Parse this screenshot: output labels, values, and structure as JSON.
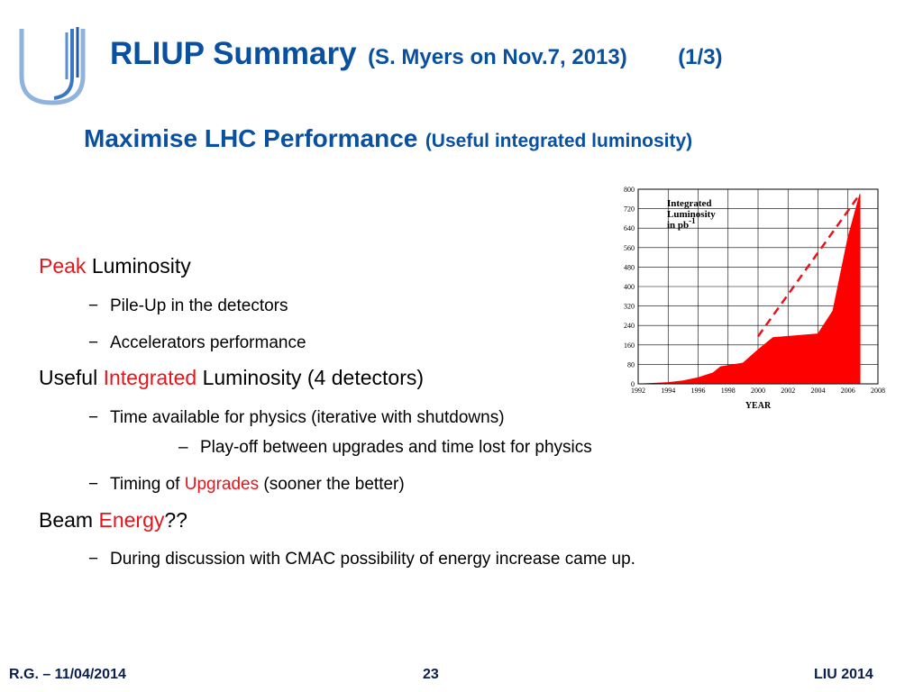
{
  "header": {
    "title": "RLIUP Summary",
    "title_sub": "(S. Myers on Nov.7, 2013)",
    "page_indicator": "(1/3)"
  },
  "subtitle": {
    "main": "Maximise LHC Performance",
    "sub": "(Useful integrated luminosity)"
  },
  "bullets": {
    "peak": {
      "highlight": "Peak",
      "rest": " Luminosity"
    },
    "pileup": "Pile-Up in the detectors",
    "accel": "Accelerators performance",
    "useful": {
      "pre": "Useful ",
      "highlight": "Integrated",
      "rest": " Luminosity (4 detectors)"
    },
    "time": "Time available for physics (iterative with shutdowns)",
    "playoff": "Play-off between upgrades and time lost for physics",
    "timing": {
      "pre": "Timing of ",
      "highlight": "Upgrades",
      "rest": " (sooner the better)"
    },
    "beam": {
      "pre": "Beam ",
      "highlight": "Energy",
      "rest": "??"
    },
    "cmac": "During discussion with CMAC possibility of energy increase came up."
  },
  "bullet_marks": {
    "dash": "−",
    "en_dash": "–"
  },
  "footer": {
    "left": "R.G. – 11/04/2014",
    "center": "23",
    "right": "LIU 2014"
  },
  "colors": {
    "title_blue": "#0a50a0",
    "highlight_red": "#e8141b",
    "chart_fill": "#ff0000"
  },
  "chart_data": {
    "type": "area",
    "annotation": [
      "Integrated",
      "Luminosity",
      "in pb"
    ],
    "annotation_sup": "-1",
    "xlabel": "YEAR",
    "ylabel": "",
    "xlim": [
      1992,
      2008
    ],
    "ylim": [
      0,
      800
    ],
    "x_ticks": [
      1992,
      1994,
      1996,
      1998,
      2000,
      2002,
      2004,
      2006,
      2008
    ],
    "y_ticks": [
      0,
      80,
      160,
      240,
      320,
      400,
      480,
      560,
      640,
      720,
      800
    ],
    "grid": true,
    "series": [
      {
        "x": [
          1992.3,
          1993,
          1994,
          1995,
          1996,
          1997,
          1997.5,
          1998,
          1999,
          2000,
          2001,
          2002,
          2003,
          2004,
          2005,
          2006,
          2006.8
        ],
        "y": [
          0,
          2,
          5,
          12,
          25,
          45,
          70,
          75,
          85,
          140,
          190,
          195,
          200,
          205,
          300,
          600,
          780
        ]
      }
    ],
    "trend_line": {
      "x": [
        2000,
        2006.8
      ],
      "y": [
        195,
        780
      ],
      "style": "dashed"
    }
  }
}
